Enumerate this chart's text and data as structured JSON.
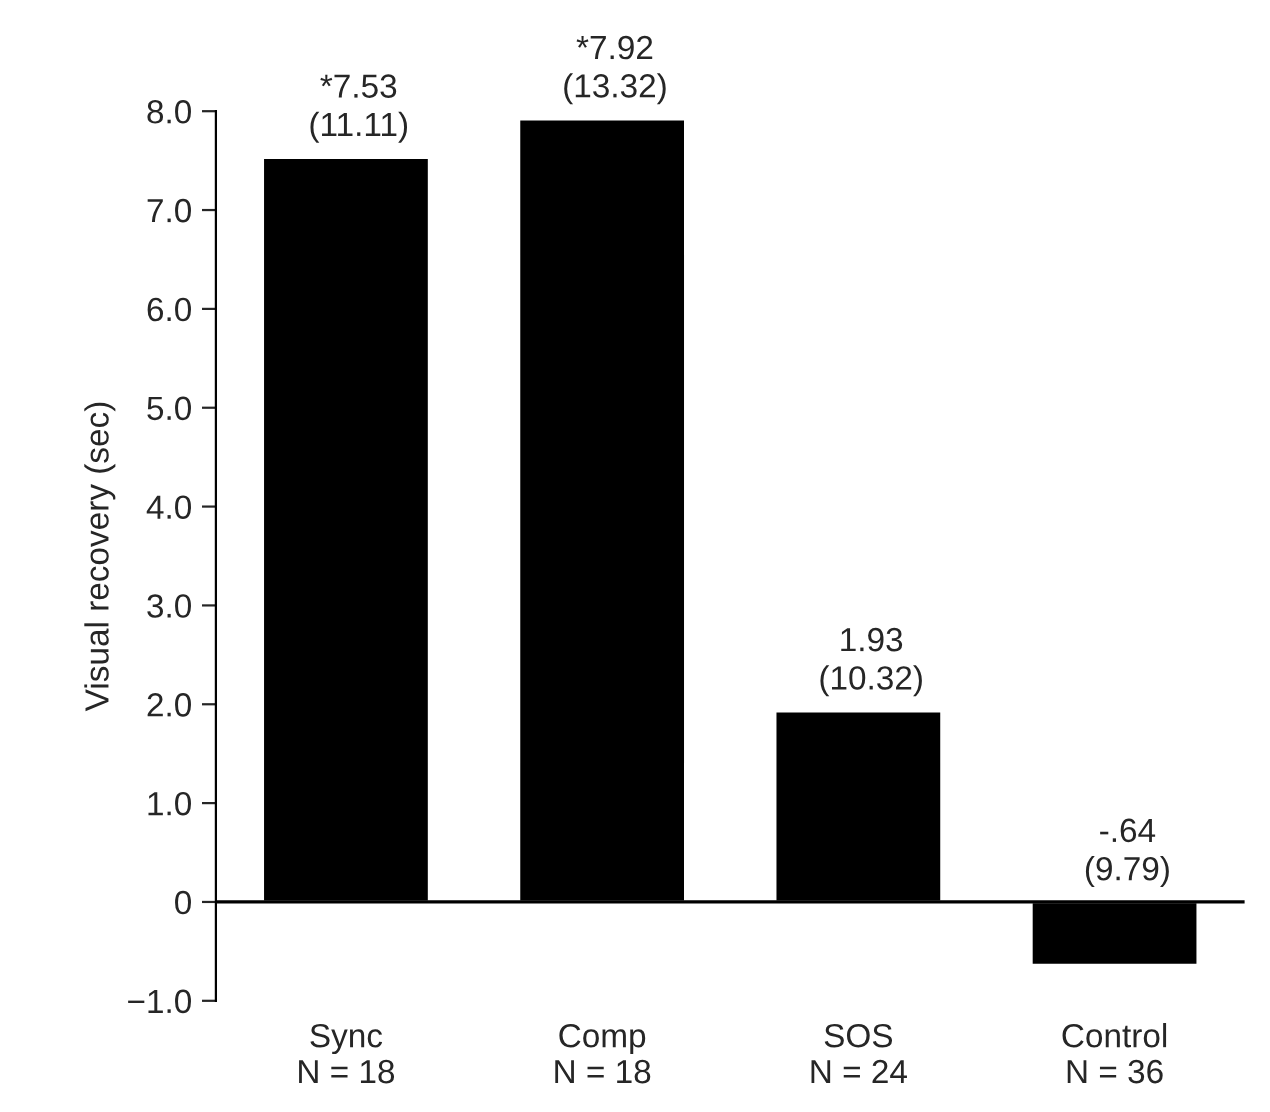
{
  "chart_data": {
    "type": "bar",
    "ylabel": "Visual recovery (sec)",
    "categories": [
      "Sync\nN = 18",
      "Comp\nN = 18",
      "SOS\nN = 24",
      "Control\nN = 36"
    ],
    "values": [
      7.53,
      7.92,
      1.93,
      -0.64
    ],
    "value_labels": [
      "*7.53\n(11.11)",
      "*7.92\n(13.32)",
      "1.93\n(10.32)",
      "-.64\n(9.79)"
    ],
    "color": "#000000",
    "ylim": [
      -1.0,
      8.0
    ],
    "yticks": [
      {
        "value": -1.0,
        "label": "−1.0"
      },
      {
        "value": 0,
        "label": "0"
      },
      {
        "value": 1.0,
        "label": "1.0"
      },
      {
        "value": 2.0,
        "label": "2.0"
      },
      {
        "value": 3.0,
        "label": "3.0"
      },
      {
        "value": 4.0,
        "label": "4.0"
      },
      {
        "value": 5.0,
        "label": "5.0"
      },
      {
        "value": 6.0,
        "label": "6.0"
      },
      {
        "value": 7.0,
        "label": "7.0"
      },
      {
        "value": 8.0,
        "label": "8.0"
      }
    ],
    "ref_lines": [
      {
        "axis": "y",
        "value": 0,
        "color": "#000000"
      }
    ],
    "grid": false,
    "legend": false
  }
}
